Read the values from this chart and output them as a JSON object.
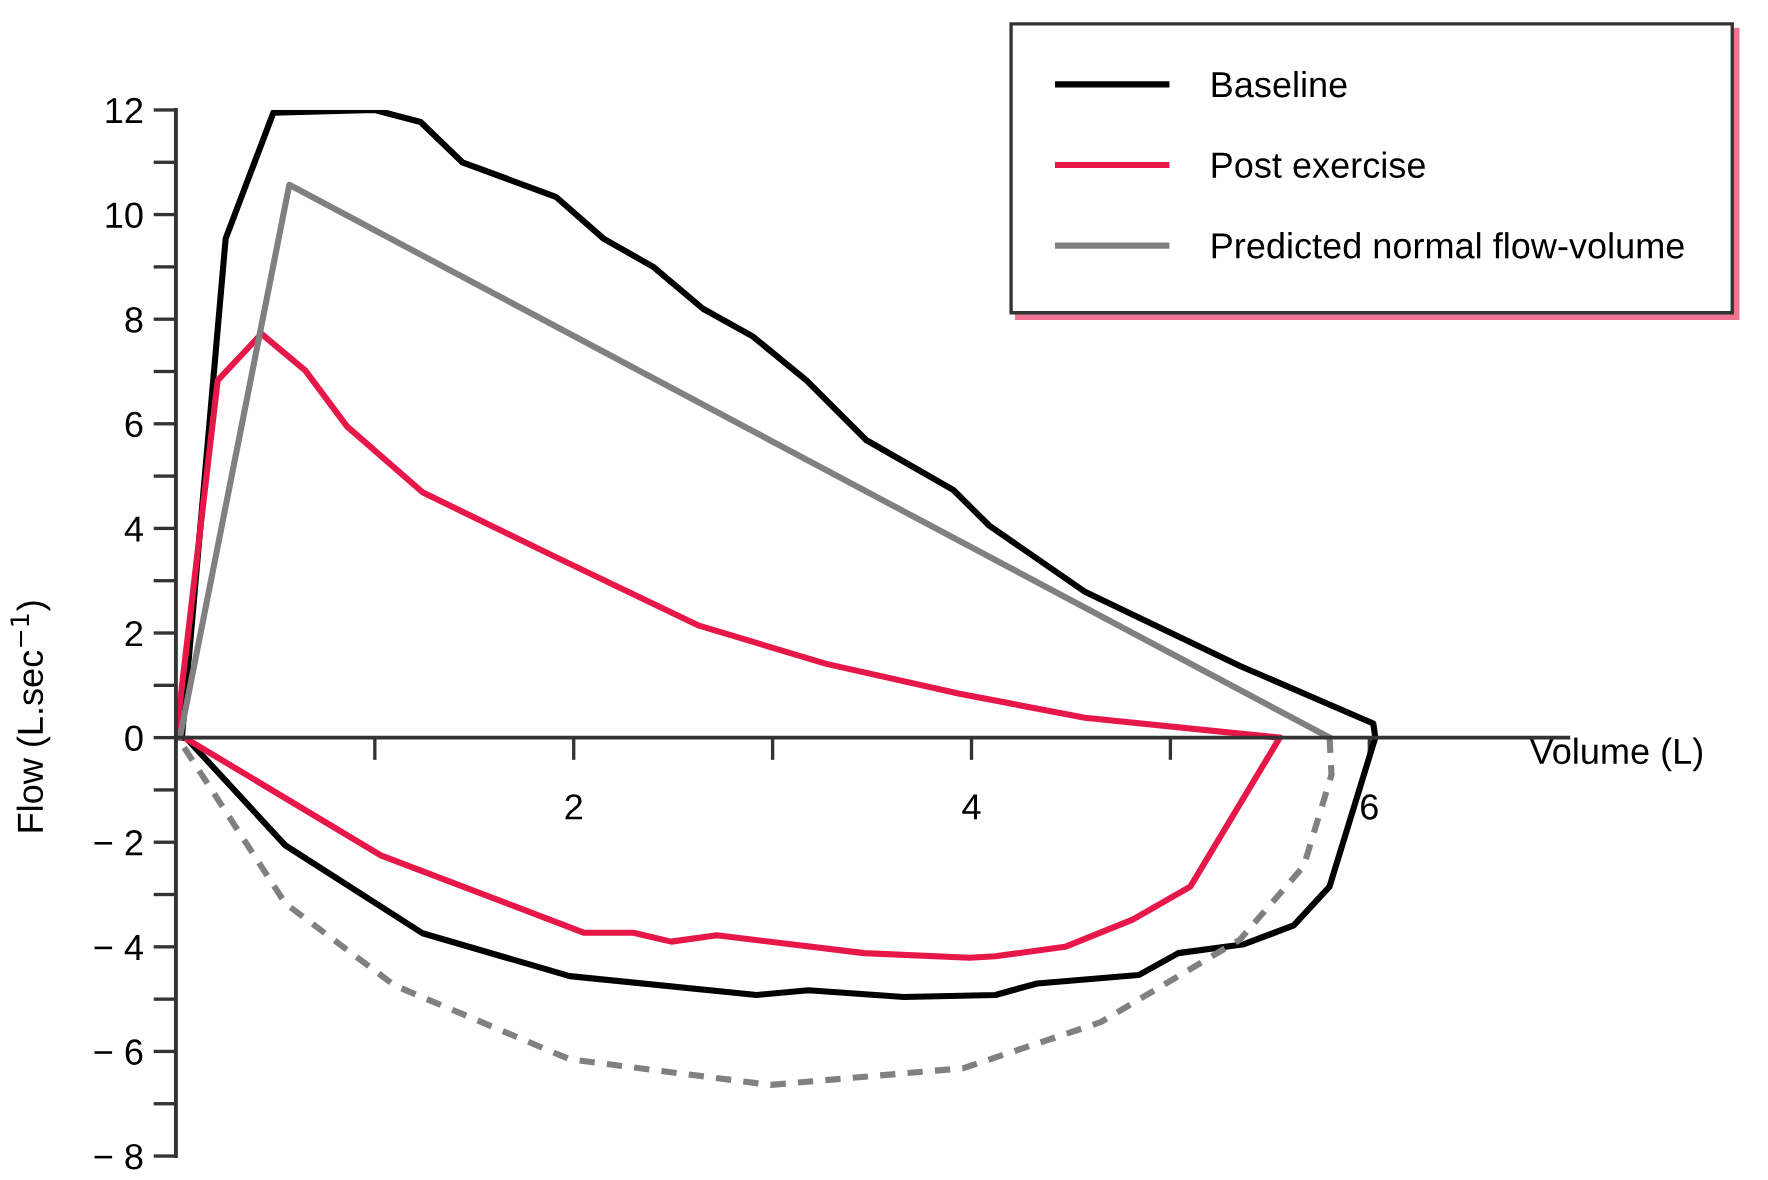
{
  "chart_data": {
    "type": "line",
    "xlabel": "Volume (L)",
    "ylabel": "Flow (L.sec$^{−1}$)",
    "xlim": [
      0,
      7
    ],
    "ylim": [
      -8,
      12
    ],
    "xticks": [
      {
        "value": 1,
        "label": null
      },
      2,
      {
        "value": 3,
        "label": null
      },
      4,
      {
        "value": 5,
        "label": null
      },
      6
    ],
    "yticks": [
      {
        "value": -8,
        "label": "− 8"
      },
      {
        "value": -7,
        "label": null
      },
      {
        "value": -6,
        "label": "− 6"
      },
      {
        "value": -5,
        "label": null
      },
      {
        "value": -4,
        "label": "− 4"
      },
      {
        "value": -3,
        "label": null
      },
      {
        "value": -2,
        "label": "− 2"
      },
      {
        "value": -1,
        "label": null
      },
      0,
      {
        "value": 1,
        "label": null
      },
      2,
      {
        "value": 3,
        "label": null
      },
      4,
      {
        "value": 5,
        "label": null
      },
      6,
      {
        "value": 7,
        "label": null
      },
      8,
      {
        "value": 9,
        "label": null
      },
      10,
      {
        "value": 11,
        "label": null
      },
      12
    ],
    "grid": false,
    "legend": "top right",
    "marker": "none",
    "series": [
      {
        "name": "Baseline",
        "color": "#000000",
        "line_style": "solid",
        "x": [
          0.03,
          0.25,
          0.49,
          1.0,
          1.23,
          1.44,
          1.91,
          2.15,
          2.4,
          2.65,
          2.9,
          3.17,
          3.47,
          3.91,
          4.09,
          4.57,
          5.35,
          6.02,
          6.03,
          5.8,
          5.62,
          5.37,
          5.04,
          4.84,
          4.33,
          4.12,
          3.66,
          3.18,
          2.92,
          1.98,
          1.24,
          0.55,
          0.06
        ],
        "values": [
          0.0,
          9.54,
          11.95,
          12.0,
          11.77,
          11.0,
          10.34,
          9.54,
          9.0,
          8.2,
          7.67,
          6.83,
          5.69,
          4.73,
          4.05,
          2.79,
          1.37,
          0.27,
          0.0,
          -2.85,
          -3.59,
          -3.95,
          -4.12,
          -4.54,
          -4.7,
          -4.92,
          -4.96,
          -4.83,
          -4.92,
          -4.56,
          -3.74,
          -2.06,
          -0.04
        ]
      },
      {
        "name": "Post exercise",
        "color": "#e8174a",
        "line_style": "solid",
        "x": [
          0.0,
          0.21,
          0.43,
          0.65,
          0.86,
          1.24,
          1.9,
          2.63,
          3.27,
          3.94,
          4.57,
          5.55,
          5.1,
          4.81,
          4.47,
          4.12,
          3.99,
          3.46,
          2.72,
          2.49,
          2.3,
          2.05,
          1.03,
          0.06
        ],
        "values": [
          0.0,
          6.83,
          7.72,
          7.02,
          5.95,
          4.69,
          3.47,
          2.14,
          1.41,
          0.84,
          0.38,
          0.0,
          -2.85,
          -3.48,
          -4.0,
          -4.18,
          -4.21,
          -4.12,
          -3.78,
          -3.9,
          -3.73,
          -3.73,
          -2.25,
          -0.04
        ]
      },
      {
        "name": "Predicted normal flow-volume",
        "color": "#808080",
        "line_style": "solid",
        "x": [
          0.02,
          0.57,
          5.8
        ],
        "values": [
          0.0,
          10.57,
          0.0
        ]
      },
      {
        "color": "#808080",
        "line_style": "dashed",
        "x": [
          5.8,
          5.81,
          5.67,
          5.35,
          4.65,
          3.96,
          2.99,
          1.98,
          1.1,
          0.55,
          0.04
        ],
        "values": [
          0.0,
          -0.71,
          -2.46,
          -3.86,
          -5.44,
          -6.32,
          -6.64,
          -6.15,
          -4.74,
          -3.17,
          -0.18
        ]
      }
    ]
  }
}
